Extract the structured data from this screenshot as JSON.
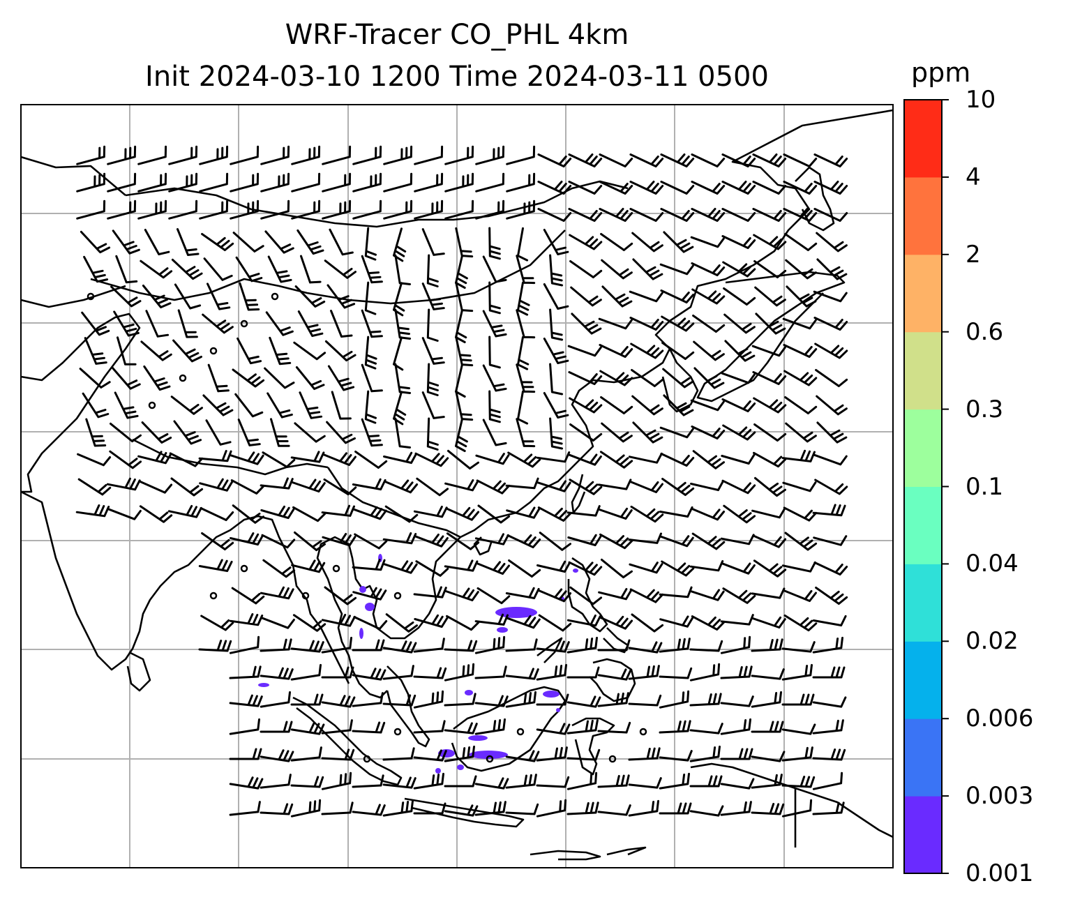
{
  "title": {
    "line1": "WRF-Tracer CO_PHL 4km",
    "line2": "Init 2024-03-10 1200 Time 2024-03-11 0500"
  },
  "colorbar": {
    "unit": "ppm",
    "levels": [
      "0.001",
      "0.003",
      "0.006",
      "0.02",
      "0.04",
      "0.1",
      "0.3",
      "0.6",
      "2",
      "4",
      "10"
    ],
    "colors": [
      "#6a2bff",
      "#3a74f5",
      "#05b1ec",
      "#2fe0d8",
      "#6affc0",
      "#9dff9d",
      "#d0e08a",
      "#feb266",
      "#ff733d",
      "#ff2c17"
    ]
  },
  "map": {
    "gridlines": true,
    "coastline_color": "#000000",
    "grid_color": "#b0b0b0",
    "tracer_color": "#6a2bff",
    "barbs": "wind barbs"
  }
}
